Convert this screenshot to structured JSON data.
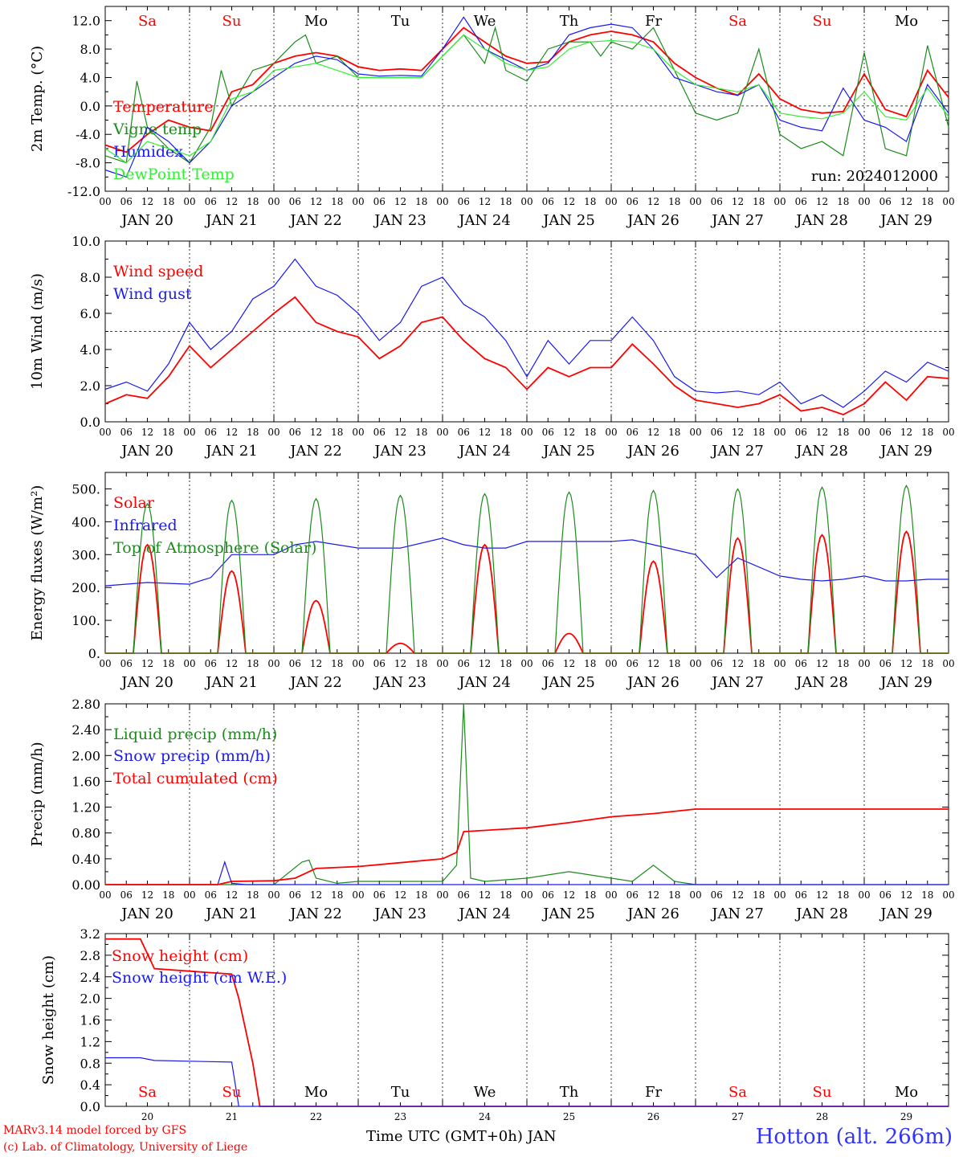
{
  "run_label": "run: 2024012000",
  "colors": {
    "red": "#ff0000",
    "green": "#1a8c1a",
    "blue": "#1a1aee",
    "lightgreen": "#33ee33",
    "axis": "#000000"
  },
  "days": [
    {
      "dow": "Sa",
      "weekend": true,
      "date": "JAN 20",
      "num": "20"
    },
    {
      "dow": "Su",
      "weekend": true,
      "date": "JAN 21",
      "num": "21"
    },
    {
      "dow": "Mo",
      "weekend": false,
      "date": "JAN 22",
      "num": "22"
    },
    {
      "dow": "Tu",
      "weekend": false,
      "date": "JAN 23",
      "num": "23"
    },
    {
      "dow": "We",
      "weekend": false,
      "date": "JAN 24",
      "num": "24"
    },
    {
      "dow": "Th",
      "weekend": false,
      "date": "JAN 25",
      "num": "25"
    },
    {
      "dow": "Fr",
      "weekend": false,
      "date": "JAN 26",
      "num": "26"
    },
    {
      "dow": "Sa",
      "weekend": true,
      "date": "JAN 27",
      "num": "27"
    },
    {
      "dow": "Su",
      "weekend": true,
      "date": "JAN 28",
      "num": "28"
    },
    {
      "dow": "Mo",
      "weekend": false,
      "date": "JAN 29",
      "num": "29"
    }
  ],
  "hour_ticks": [
    "00",
    "06",
    "12",
    "18"
  ],
  "footer": {
    "model": "MARv3.14 model forced by GFS",
    "lab": "(c) Lab. of Climatology, University of Liege",
    "xaxis": "Time UTC (GMT+0h) JAN",
    "station": "Hotton (alt. 266m)"
  },
  "chart_data": [
    {
      "type": "line",
      "ylabel": "2m Temp. (°C)",
      "ylim": [
        -12,
        14
      ],
      "yticks": [
        "12.0",
        "8.0",
        "4.0",
        "0.0",
        "-4.0",
        "-8.0",
        "-12.0"
      ],
      "ytick_values": [
        12,
        8,
        4,
        0,
        -4,
        -8,
        -12
      ],
      "hline": 0,
      "grid": "dotted vertical at day boundaries",
      "legend": "top-left",
      "series": [
        {
          "name": "Temperature",
          "color": "red",
          "x": [
            0,
            6,
            12,
            18,
            24,
            30,
            36,
            42,
            48,
            54,
            60,
            66,
            72,
            78,
            84,
            90,
            96,
            102,
            108,
            114,
            120,
            126,
            132,
            138,
            144,
            150,
            156,
            162,
            168,
            174,
            180,
            186,
            192,
            198,
            204,
            210,
            216,
            222,
            228,
            234,
            240
          ],
          "y": [
            -5.5,
            -6.5,
            -4,
            -2,
            -3,
            -3.5,
            2,
            3,
            6,
            7,
            7.5,
            7,
            5.5,
            5,
            5.2,
            5,
            8,
            11,
            9,
            7,
            6,
            6.2,
            9,
            10,
            10.5,
            10,
            9,
            6,
            4,
            2.5,
            1.5,
            4.5,
            1,
            -0.5,
            -1,
            -0.8,
            4.5,
            -0.5,
            -1.5,
            5,
            1.2
          ]
        },
        {
          "name": "Vigne temp",
          "color": "green",
          "x": [
            0,
            6,
            9,
            12,
            18,
            24,
            30,
            33,
            36,
            42,
            48,
            54,
            57,
            60,
            66,
            72,
            78,
            84,
            90,
            96,
            102,
            108,
            111,
            114,
            120,
            126,
            132,
            138,
            141,
            144,
            150,
            156,
            162,
            168,
            174,
            180,
            186,
            192,
            198,
            204,
            210,
            216,
            222,
            228,
            234,
            240
          ],
          "y": [
            -7,
            -8,
            3.5,
            -3,
            -6,
            -8,
            -3,
            5,
            0,
            5,
            6,
            9,
            10,
            6,
            7,
            4,
            4,
            4,
            4,
            7,
            10,
            6,
            11,
            5,
            3.5,
            8,
            9,
            9,
            7,
            9,
            8,
            11,
            5,
            -1,
            -2,
            -1,
            8,
            -4,
            -6,
            -5,
            -7,
            7.5,
            -6,
            -7,
            8.5,
            -3
          ]
        },
        {
          "name": "Humidex",
          "color": "blue",
          "x": [
            0,
            6,
            12,
            18,
            24,
            30,
            36,
            42,
            48,
            54,
            60,
            66,
            72,
            78,
            84,
            90,
            96,
            102,
            108,
            114,
            120,
            126,
            132,
            138,
            144,
            150,
            156,
            162,
            168,
            174,
            180,
            186,
            192,
            198,
            204,
            210,
            216,
            222,
            228,
            234,
            240
          ],
          "y": [
            -9,
            -10,
            -3,
            -5,
            -8,
            -5,
            0,
            2,
            4,
            6,
            7,
            6.5,
            4.5,
            4.2,
            4.3,
            4.2,
            8,
            12.5,
            8,
            6.5,
            5,
            6,
            10,
            11,
            11.5,
            11,
            8,
            4,
            3,
            2,
            1.5,
            3,
            -2,
            -3,
            -3.5,
            2.5,
            -2,
            -3,
            -5,
            3,
            -1
          ]
        },
        {
          "name": "DewPoint Temp",
          "color": "lightgreen",
          "x": [
            0,
            6,
            12,
            18,
            24,
            30,
            36,
            42,
            48,
            54,
            60,
            66,
            72,
            78,
            84,
            90,
            96,
            102,
            108,
            114,
            120,
            126,
            132,
            138,
            144,
            150,
            156,
            162,
            168,
            174,
            180,
            186,
            192,
            198,
            204,
            210,
            216,
            222,
            228,
            234,
            240
          ],
          "y": [
            -6,
            -8,
            -5,
            -6,
            -7,
            -5,
            1,
            2,
            5,
            5.5,
            6,
            5,
            4,
            4,
            4,
            4,
            7,
            10,
            8,
            6,
            5,
            5.5,
            8,
            9,
            9.2,
            9,
            8,
            5,
            3,
            2.5,
            2,
            3,
            -1,
            -1.5,
            -1.8,
            -1,
            2,
            -1.5,
            -2,
            2.5,
            -1.5
          ]
        }
      ]
    },
    {
      "type": "line",
      "ylabel": "10m Wind (m/s)",
      "ylim": [
        0,
        10
      ],
      "yticks": [
        "10.0",
        "8.0",
        "6.0",
        "4.0",
        "2.0",
        "0.0"
      ],
      "ytick_values": [
        10,
        8,
        6,
        4,
        2,
        0
      ],
      "hline": 5,
      "legend": "top-left",
      "series": [
        {
          "name": "Wind speed",
          "color": "red",
          "x": [
            0,
            6,
            12,
            18,
            24,
            30,
            36,
            42,
            48,
            54,
            60,
            66,
            72,
            78,
            84,
            90,
            96,
            102,
            108,
            114,
            120,
            126,
            132,
            138,
            144,
            150,
            156,
            162,
            168,
            174,
            180,
            186,
            192,
            198,
            204,
            210,
            216,
            222,
            228,
            234,
            240
          ],
          "y": [
            1,
            1.5,
            1.3,
            2.5,
            4.2,
            3,
            4,
            5,
            6,
            6.9,
            5.5,
            5,
            4.7,
            3.5,
            4.2,
            5.5,
            5.8,
            4.5,
            3.5,
            3,
            1.8,
            3,
            2.5,
            3,
            3,
            4.3,
            3.2,
            2,
            1.2,
            1,
            0.8,
            1,
            1.5,
            0.6,
            0.8,
            0.4,
            1,
            2.2,
            1.2,
            2.5,
            2.4
          ]
        },
        {
          "name": "Wind gust",
          "color": "blue",
          "x": [
            0,
            6,
            12,
            18,
            24,
            30,
            36,
            42,
            48,
            54,
            60,
            66,
            72,
            78,
            84,
            90,
            96,
            102,
            108,
            114,
            120,
            126,
            132,
            138,
            144,
            150,
            156,
            162,
            168,
            174,
            180,
            186,
            192,
            198,
            204,
            210,
            216,
            222,
            228,
            234,
            240
          ],
          "y": [
            1.8,
            2.2,
            1.7,
            3.2,
            5.5,
            4,
            5,
            6.8,
            7.5,
            9,
            7.5,
            7,
            6,
            4.5,
            5.5,
            7.5,
            8,
            6.5,
            5.8,
            4.5,
            2.5,
            4.5,
            3.2,
            4.5,
            4.5,
            5.8,
            4.5,
            2.5,
            1.7,
            1.6,
            1.7,
            1.5,
            2.2,
            1,
            1.5,
            0.8,
            1.7,
            2.8,
            2.2,
            3.3,
            2.8
          ]
        }
      ]
    },
    {
      "type": "line",
      "ylabel": "Energy fluxes (W/m²)",
      "ylim": [
        0,
        550
      ],
      "yticks": [
        "500.",
        "400.",
        "300.",
        "200.",
        "100.",
        "0."
      ],
      "ytick_values": [
        500,
        400,
        300,
        200,
        100,
        0
      ],
      "legend": "top-left",
      "series": [
        {
          "name": "Solar",
          "daily_peaks": [
            330,
            250,
            160,
            30,
            330,
            60,
            280,
            350,
            360,
            370
          ],
          "color": "red"
        },
        {
          "name": "Infrared",
          "color": "blue",
          "x": [
            0,
            12,
            24,
            30,
            36,
            42,
            48,
            54,
            60,
            72,
            84,
            96,
            102,
            108,
            114,
            120,
            132,
            144,
            150,
            156,
            168,
            174,
            180,
            192,
            198,
            204,
            210,
            216,
            222,
            228,
            234,
            240
          ],
          "y": [
            205,
            215,
            210,
            230,
            300,
            300,
            300,
            330,
            340,
            320,
            320,
            350,
            330,
            320,
            320,
            340,
            340,
            340,
            345,
            330,
            300,
            230,
            290,
            235,
            225,
            220,
            225,
            235,
            220,
            220,
            225,
            225
          ]
        },
        {
          "name": "Top of Atmosphere (Solar)",
          "daily_peaks": [
            455,
            465,
            470,
            480,
            485,
            490,
            495,
            500,
            505,
            510
          ],
          "color": "green"
        }
      ]
    },
    {
      "type": "line",
      "ylabel": "Precip (mm/h)",
      "ylim": [
        0,
        2.8
      ],
      "yticks": [
        "2.80",
        "2.40",
        "2.00",
        "1.60",
        "1.20",
        "0.80",
        "0.40",
        "0.00"
      ],
      "ytick_values": [
        2.8,
        2.4,
        2.0,
        1.6,
        1.2,
        0.8,
        0.4,
        0.0
      ],
      "legend": "top-left",
      "series": [
        {
          "name": "Liquid precip (mm/h)",
          "color": "green",
          "x": [
            0,
            36,
            48,
            56,
            58,
            60,
            66,
            72,
            96,
            100,
            102,
            104,
            108,
            120,
            132,
            144,
            150,
            156,
            162,
            168,
            240
          ],
          "y": [
            0,
            0,
            0,
            0.35,
            0.38,
            0.1,
            0.02,
            0.05,
            0.05,
            0.3,
            2.8,
            0.1,
            0.05,
            0.1,
            0.2,
            0.1,
            0.05,
            0.3,
            0.05,
            0,
            0
          ]
        },
        {
          "name": "Snow precip (mm/h)",
          "color": "blue",
          "x": [
            0,
            32,
            34,
            36,
            40,
            240
          ],
          "y": [
            0,
            0,
            0.35,
            0.02,
            0,
            0
          ]
        },
        {
          "name": "Total cumulated (cm)",
          "color": "red",
          "x": [
            0,
            32,
            36,
            48,
            54,
            60,
            72,
            84,
            96,
            100,
            102,
            108,
            120,
            132,
            144,
            156,
            168,
            240
          ],
          "y": [
            0,
            0,
            0.05,
            0.06,
            0.1,
            0.25,
            0.28,
            0.34,
            0.4,
            0.5,
            0.82,
            0.84,
            0.88,
            0.96,
            1.05,
            1.1,
            1.17,
            1.17
          ]
        }
      ]
    },
    {
      "type": "line",
      "ylabel": "Snow height (cm)",
      "ylim": [
        0,
        3.2
      ],
      "yticks": [
        "3.2",
        "2.8",
        "2.4",
        "2.0",
        "1.6",
        "1.2",
        "0.8",
        "0.4",
        "0.0"
      ],
      "ytick_values": [
        3.2,
        2.8,
        2.4,
        2.0,
        1.6,
        1.2,
        0.8,
        0.4,
        0.0
      ],
      "legend": "top-left",
      "series": [
        {
          "name": "Snow height (cm)",
          "color": "red",
          "x": [
            0,
            10,
            14,
            36,
            38,
            42,
            44,
            240
          ],
          "y": [
            3.1,
            3.1,
            2.55,
            2.45,
            2.0,
            0.8,
            0,
            0
          ]
        },
        {
          "name": "Snow height (cm W.E.)",
          "color": "blue",
          "x": [
            0,
            10,
            14,
            36,
            38,
            240
          ],
          "y": [
            0.9,
            0.9,
            0.85,
            0.82,
            0,
            0
          ]
        }
      ]
    }
  ]
}
